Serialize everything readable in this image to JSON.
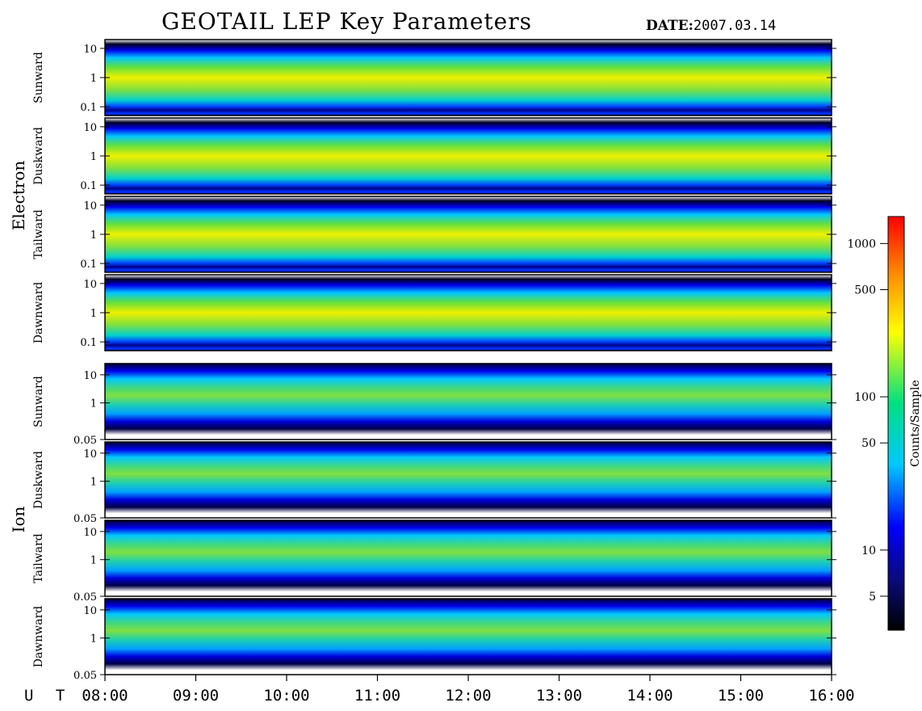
{
  "title": "GEOTAIL LEP Key Parameters",
  "date_label": "DATE:",
  "date_value": "2007.03.14",
  "chart_data": {
    "type": "heatmap",
    "x_axis": {
      "label": "U T",
      "ticks": [
        "08:00",
        "09:00",
        "10:00",
        "11:00",
        "12:00",
        "13:00",
        "14:00",
        "15:00",
        "16:00"
      ],
      "range": [
        "08:00",
        "16:00"
      ]
    },
    "groups": [
      {
        "species": "Electron",
        "ytick_labels": [
          "10",
          "1",
          "0.1"
        ],
        "yticks": [
          10,
          1,
          0.1
        ],
        "ylim": [
          0.05,
          20
        ],
        "yscale": "log",
        "panels": [
          {
            "direction": "Sunward"
          },
          {
            "direction": "Duskward"
          },
          {
            "direction": "Tailward"
          },
          {
            "direction": "Dawnward"
          }
        ]
      },
      {
        "species": "Ion",
        "ytick_labels": [
          "10",
          "1",
          "0.05"
        ],
        "yticks": [
          10,
          1,
          0.05
        ],
        "ylim": [
          0.05,
          25
        ],
        "yscale": "log",
        "panels": [
          {
            "direction": "Sunward"
          },
          {
            "direction": "Duskward"
          },
          {
            "direction": "Tailward"
          },
          {
            "direction": "Dawnward"
          }
        ]
      }
    ],
    "colorbar": {
      "label": "Counts/Sample",
      "scale": "log",
      "range": [
        3,
        1500
      ],
      "tick_labels": [
        "1000",
        "500",
        "100",
        "50",
        "10",
        "5"
      ],
      "ticks": [
        1000,
        500,
        100,
        50,
        10,
        5
      ]
    }
  }
}
